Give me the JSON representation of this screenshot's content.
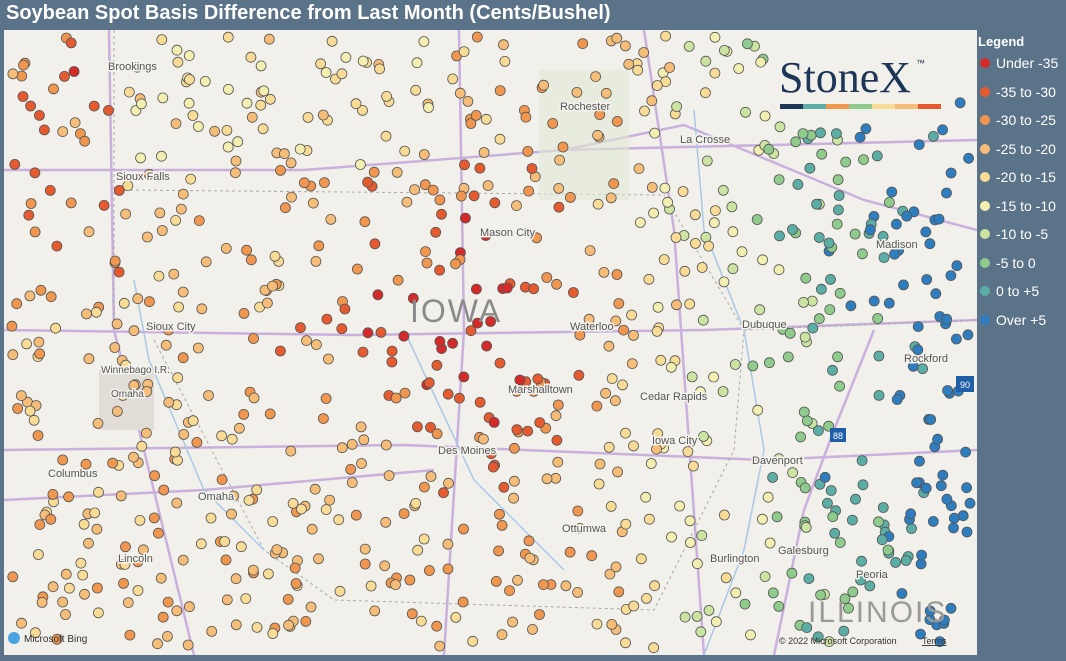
{
  "title": "Soybean Spot Basis Difference from Last Month (Cents/Bushel)",
  "legend": {
    "title": "Legend",
    "items": [
      {
        "label": "Under -35",
        "color": "#d42a2a"
      },
      {
        "label": "-35 to -30",
        "color": "#e65a30"
      },
      {
        "label": "-30 to -25",
        "color": "#f0964f"
      },
      {
        "label": "-25 to -20",
        "color": "#f6bd78"
      },
      {
        "label": "-20 to -15",
        "color": "#f8dc96"
      },
      {
        "label": "-15 to -10",
        "color": "#f3efb0"
      },
      {
        "label": "-10 to -5",
        "color": "#cbe4a2"
      },
      {
        "label": "-5 to 0",
        "color": "#8ecb8c"
      },
      {
        "label": "0 to +5",
        "color": "#5aaea6"
      },
      {
        "label": "Over +5",
        "color": "#2e7dbf"
      }
    ]
  },
  "logo": {
    "name": "StoneX",
    "mark": "™"
  },
  "map_labels": [
    "Brookings",
    "Rochester",
    "La Crosse",
    "Sioux Falls",
    "Mason City",
    "Madison",
    "IOWA",
    "Waterloo",
    "Sioux City",
    "Dubuque",
    "Rockford",
    "Winnebago I.R.",
    "Omaha",
    "Marshalltown",
    "Cedar Rapids",
    "Iowa City",
    "Des Moines",
    "Davenport",
    "Columbus",
    "Omaha",
    "Ottumwa",
    "Burlington",
    "Galesburg",
    "Lincoln",
    "Peoria",
    "ILLINOIS",
    "88",
    "90"
  ],
  "attribution": {
    "provider": "Microsoft Bing",
    "copyright": "© 2022 Microsoft Corporation",
    "terms": "Terms"
  }
}
